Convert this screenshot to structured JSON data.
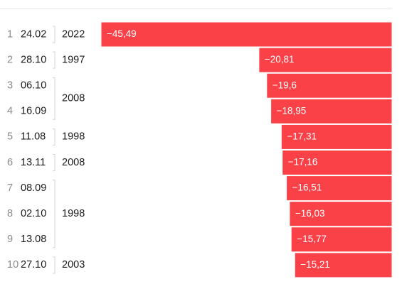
{
  "chart_data": {
    "type": "bar",
    "orientation": "horizontal",
    "categories": [
      "24.02",
      "28.10",
      "06.10",
      "16.09",
      "11.08",
      "13.11",
      "08.09",
      "02.10",
      "13.08",
      "27.10"
    ],
    "ranks": [
      "1",
      "2",
      "3",
      "4",
      "5",
      "6",
      "7",
      "8",
      "9",
      "10"
    ],
    "values": [
      -45.49,
      -20.81,
      -19.6,
      -18.95,
      -17.31,
      -17.16,
      -16.51,
      -16.03,
      -15.77,
      -15.21
    ],
    "value_labels": [
      "−45,49",
      "−20,81",
      "−19,6",
      "−18,95",
      "−17,31",
      "−17,16",
      "−16,51",
      "−16,03",
      "−15,77",
      "−15,21"
    ],
    "year_groups": [
      {
        "year": "2022",
        "rows": [
          0,
          0
        ]
      },
      {
        "year": "1997",
        "rows": [
          1,
          1
        ]
      },
      {
        "year": "2008",
        "rows": [
          2,
          3
        ]
      },
      {
        "year": "1998",
        "rows": [
          4,
          4
        ]
      },
      {
        "year": "2008",
        "rows": [
          5,
          5
        ]
      },
      {
        "year": "1998",
        "rows": [
          6,
          8
        ]
      },
      {
        "year": "2003",
        "rows": [
          9,
          9
        ]
      }
    ],
    "xlim": [
      -45.49,
      0
    ],
    "grid": false,
    "legend": "none",
    "title": "",
    "xlabel": "",
    "ylabel": ""
  },
  "colors": {
    "bar": "#fb4148",
    "bar_border": "#ffffff",
    "bar_label": "#ffffff",
    "rank": "#8a8a8a",
    "date": "#1a1a1a",
    "year": "#1a1a1a",
    "bracket": "#d4d4d4"
  }
}
